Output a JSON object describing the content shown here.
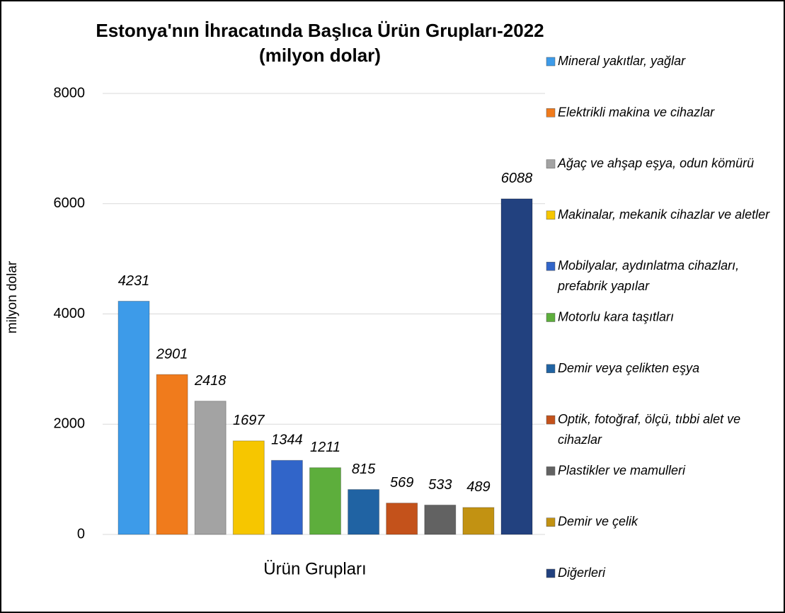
{
  "chart_data": {
    "type": "bar",
    "title": "Estonya'nın İhracatında Başlıca Ürün Grupları-2022",
    "subtitle": "(milyon dolar)",
    "y_label": "milyon dolar",
    "x_label": "Ürün Grupları",
    "ylim": [
      0,
      8000
    ],
    "yticks": [
      0,
      2000,
      4000,
      6000,
      8000
    ],
    "grid": true,
    "legend": "right",
    "series": [
      {
        "name": "Mineral yakıtlar, yağlar",
        "color": "#3d9be9",
        "values": [
          4231
        ]
      },
      {
        "name": "Elektrikli makina ve cihazlar",
        "color": "#f07b1c",
        "values": [
          2901
        ]
      },
      {
        "name": "Ağaç ve ahşap eşya, odun kömürü",
        "color": "#a3a3a3",
        "values": [
          2418
        ]
      },
      {
        "name": "Makinalar, mekanik cihazlar ve aletler",
        "color": "#f6c600",
        "values": [
          1697
        ]
      },
      {
        "name": "Mobilyalar, aydınlatma cihazları, prefabrik yapılar",
        "color": "#3165c9",
        "values": [
          1344
        ]
      },
      {
        "name": "Motorlu kara taşıtları",
        "color": "#5dae3c",
        "values": [
          1211
        ]
      },
      {
        "name": "Demir veya çelikten eşya",
        "color": "#2063a3",
        "values": [
          815
        ]
      },
      {
        "name": "Optik, fotoğraf, ölçü, tıbbi alet ve cihazlar",
        "color": "#c4521b",
        "values": [
          569
        ]
      },
      {
        "name": "Plastikler ve mamulleri",
        "color": "#626262",
        "values": [
          533
        ]
      },
      {
        "name": "Demir ve çelik",
        "color": "#c29212",
        "values": [
          489
        ]
      },
      {
        "name": "Diğerleri",
        "color": "#22417f",
        "values": [
          6088
        ]
      }
    ]
  }
}
